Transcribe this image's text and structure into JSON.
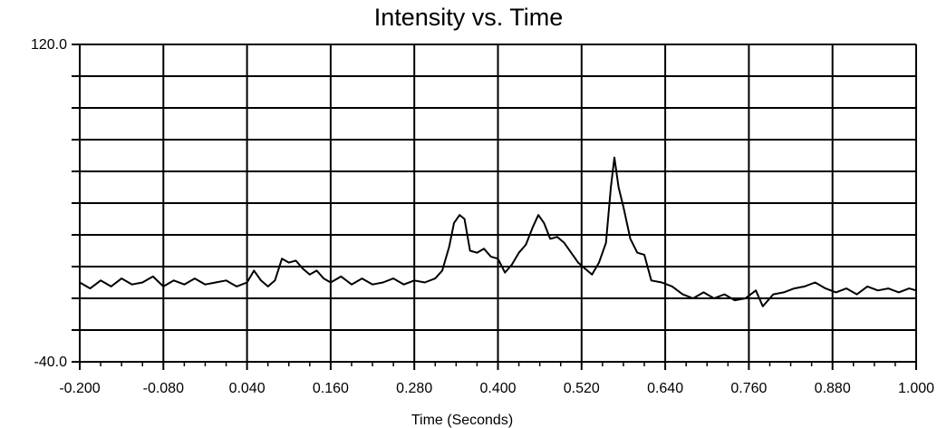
{
  "chart_data": {
    "type": "line",
    "title": "Intensity vs. Time",
    "xlabel": "Time (Seconds)",
    "ylabel": "",
    "xlim": [
      -0.2,
      1.0
    ],
    "ylim": [
      -40.0,
      120.0
    ],
    "x_tick_labels": [
      "-0.200",
      "-0.080",
      "0.040",
      "0.160",
      "0.280",
      "0.400",
      "0.520",
      "0.640",
      "0.760",
      "0.880",
      "1.000"
    ],
    "y_tick_labels": [
      "120.0",
      "-40.0"
    ],
    "grid": true,
    "legend": "none",
    "series": [
      {
        "points": [
          [
            -0.2,
            0.0
          ],
          [
            -0.185,
            -3.0
          ],
          [
            -0.17,
            1.0
          ],
          [
            -0.155,
            -2.0
          ],
          [
            -0.14,
            2.0
          ],
          [
            -0.125,
            -1.0
          ],
          [
            -0.11,
            0.0
          ],
          [
            -0.095,
            3.0
          ],
          [
            -0.08,
            -2.0
          ],
          [
            -0.065,
            1.0
          ],
          [
            -0.05,
            -1.0
          ],
          [
            -0.035,
            2.0
          ],
          [
            -0.02,
            -1.0
          ],
          [
            -0.005,
            0.0
          ],
          [
            0.01,
            1.0
          ],
          [
            0.025,
            -2.0
          ],
          [
            0.04,
            0.0
          ],
          [
            0.05,
            6.0
          ],
          [
            0.06,
            1.0
          ],
          [
            0.07,
            -2.0
          ],
          [
            0.08,
            1.0
          ],
          [
            0.09,
            12.0
          ],
          [
            0.1,
            10.0
          ],
          [
            0.11,
            11.0
          ],
          [
            0.12,
            7.0
          ],
          [
            0.13,
            4.0
          ],
          [
            0.14,
            6.0
          ],
          [
            0.15,
            2.0
          ],
          [
            0.16,
            0.0
          ],
          [
            0.175,
            3.0
          ],
          [
            0.19,
            -1.0
          ],
          [
            0.205,
            2.0
          ],
          [
            0.22,
            -1.0
          ],
          [
            0.235,
            0.0
          ],
          [
            0.25,
            2.0
          ],
          [
            0.265,
            -1.0
          ],
          [
            0.28,
            1.0
          ],
          [
            0.295,
            0.0
          ],
          [
            0.31,
            2.0
          ],
          [
            0.32,
            6.0
          ],
          [
            0.33,
            18.0
          ],
          [
            0.337,
            30.0
          ],
          [
            0.345,
            34.0
          ],
          [
            0.352,
            32.0
          ],
          [
            0.36,
            16.0
          ],
          [
            0.37,
            15.0
          ],
          [
            0.38,
            17.0
          ],
          [
            0.39,
            13.0
          ],
          [
            0.4,
            12.0
          ],
          [
            0.41,
            5.0
          ],
          [
            0.42,
            9.0
          ],
          [
            0.43,
            15.0
          ],
          [
            0.44,
            19.0
          ],
          [
            0.45,
            28.0
          ],
          [
            0.458,
            34.0
          ],
          [
            0.466,
            30.0
          ],
          [
            0.475,
            22.0
          ],
          [
            0.485,
            23.0
          ],
          [
            0.495,
            20.0
          ],
          [
            0.505,
            15.0
          ],
          [
            0.515,
            10.0
          ],
          [
            0.525,
            7.0
          ],
          [
            0.535,
            4.0
          ],
          [
            0.545,
            10.0
          ],
          [
            0.555,
            20.0
          ],
          [
            0.562,
            48.0
          ],
          [
            0.567,
            63.0
          ],
          [
            0.573,
            48.0
          ],
          [
            0.58,
            38.0
          ],
          [
            0.59,
            22.0
          ],
          [
            0.6,
            15.0
          ],
          [
            0.61,
            14.0
          ],
          [
            0.62,
            1.0
          ],
          [
            0.635,
            0.0
          ],
          [
            0.65,
            -2.0
          ],
          [
            0.665,
            -6.0
          ],
          [
            0.68,
            -8.0
          ],
          [
            0.695,
            -5.0
          ],
          [
            0.71,
            -8.0
          ],
          [
            0.725,
            -6.0
          ],
          [
            0.74,
            -9.0
          ],
          [
            0.755,
            -8.0
          ],
          [
            0.77,
            -4.0
          ],
          [
            0.78,
            -12.0
          ],
          [
            0.795,
            -6.0
          ],
          [
            0.81,
            -5.0
          ],
          [
            0.825,
            -3.0
          ],
          [
            0.84,
            -2.0
          ],
          [
            0.855,
            0.0
          ],
          [
            0.87,
            -3.0
          ],
          [
            0.885,
            -5.0
          ],
          [
            0.9,
            -3.0
          ],
          [
            0.915,
            -6.0
          ],
          [
            0.93,
            -2.0
          ],
          [
            0.945,
            -4.0
          ],
          [
            0.96,
            -3.0
          ],
          [
            0.975,
            -5.0
          ],
          [
            0.99,
            -3.0
          ],
          [
            1.0,
            -4.0
          ]
        ]
      }
    ]
  }
}
